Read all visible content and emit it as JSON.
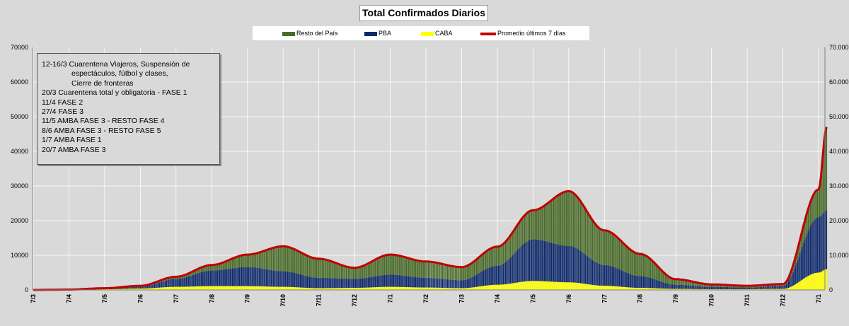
{
  "chart_data": {
    "type": "bar",
    "title": "Total Confirmados  Diarios",
    "stacked": true,
    "legend": [
      {
        "label": "Resto del País",
        "color": "#4a6b2a",
        "kind": "bar"
      },
      {
        "label": "PBA",
        "color": "#0f2a6b",
        "kind": "bar"
      },
      {
        "label": "CABA",
        "color": "#ffff00",
        "kind": "bar"
      },
      {
        "label": "Promedio últimos 7 días",
        "color": "#c00000",
        "kind": "line"
      }
    ],
    "legend_position": "top-center",
    "ylim": [
      0,
      70000
    ],
    "y_ticks": [
      "0",
      "10000",
      "20000",
      "30000",
      "40000",
      "50000",
      "60000",
      "70000"
    ],
    "y2_ticks": [
      "0",
      "10.000",
      "20.000",
      "30.000",
      "40.000",
      "50.000",
      "60.000",
      "70.000"
    ],
    "x_ticks": [
      "7/3",
      "7/4",
      "7/5",
      "7/6",
      "7/7",
      "7/8",
      "7/9",
      "7/10",
      "7/11",
      "7/12",
      "7/1",
      "7/2",
      "7/3",
      "7/4",
      "7/5",
      "7/6",
      "7/7",
      "7/8",
      "7/9",
      "7/10",
      "7/11",
      "7/12",
      "7/1"
    ],
    "grid": true,
    "x_dates": [
      "2020-03-07",
      "2020-04-07",
      "2020-05-07",
      "2020-06-07",
      "2020-07-07",
      "2020-08-07",
      "2020-09-07",
      "2020-10-07",
      "2020-11-07",
      "2020-12-07",
      "2021-01-07",
      "2021-02-07",
      "2021-03-07",
      "2021-04-07",
      "2021-05-07",
      "2021-06-07",
      "2021-07-07",
      "2021-08-07",
      "2021-09-07",
      "2021-10-07",
      "2021-11-07",
      "2021-12-07",
      "2022-01-07",
      "2022-01-14"
    ],
    "series": [
      {
        "name": "CABA",
        "color": "#ffff00",
        "values": [
          0,
          30,
          200,
          400,
          900,
          1100,
          1100,
          900,
          500,
          600,
          900,
          700,
          500,
          1500,
          2600,
          2200,
          1200,
          600,
          300,
          200,
          200,
          300,
          5000,
          6000
        ]
      },
      {
        "name": "PBA",
        "color": "#0f2a6b",
        "values": [
          0,
          40,
          200,
          500,
          2300,
          4500,
          5500,
          4500,
          3000,
          2600,
          3500,
          2800,
          2300,
          5500,
          12000,
          10500,
          6000,
          3400,
          1200,
          700,
          500,
          900,
          16000,
          17000
        ]
      },
      {
        "name": "Resto del País",
        "color": "#4a6b2a",
        "values": [
          0,
          30,
          100,
          300,
          600,
          1600,
          3600,
          7200,
          5500,
          3200,
          5800,
          4700,
          3800,
          5500,
          8400,
          15800,
          10000,
          6400,
          1600,
          700,
          500,
          500,
          8000,
          24000
        ]
      },
      {
        "name": "Promedio últimos 7 días",
        "color": "#c00000",
        "values": [
          0,
          100,
          500,
          1200,
          3800,
          7200,
          10200,
          12600,
          9000,
          6400,
          10200,
          8200,
          6600,
          12500,
          23000,
          28500,
          17200,
          10400,
          3100,
          1600,
          1200,
          1700,
          29000,
          47000
        ]
      }
    ]
  },
  "notes": [
    {
      "text": "12-16/3  Cuarentena Viajeros, Suspensión de",
      "indent": false
    },
    {
      "text": "espectáculos, fútbol y clases,",
      "indent": true
    },
    {
      "text": "Cierre de fronteras",
      "indent": true
    },
    {
      "text": "20/3 Cuarentena total y obligatoria - FASE 1",
      "indent": false
    },
    {
      "text": "11/4 FASE 2",
      "indent": false
    },
    {
      "text": "27/4 FASE 3",
      "indent": false
    },
    {
      "text": "11/5 AMBA FASE 3 - RESTO FASE 4",
      "indent": false
    },
    {
      "text": "8/6 AMBA FASE 3 - RESTO FASE 5",
      "indent": false
    },
    {
      "text": "1/7 AMBA FASE 1",
      "indent": false
    },
    {
      "text": "20/7 AMBA FASE 3",
      "indent": false
    }
  ]
}
